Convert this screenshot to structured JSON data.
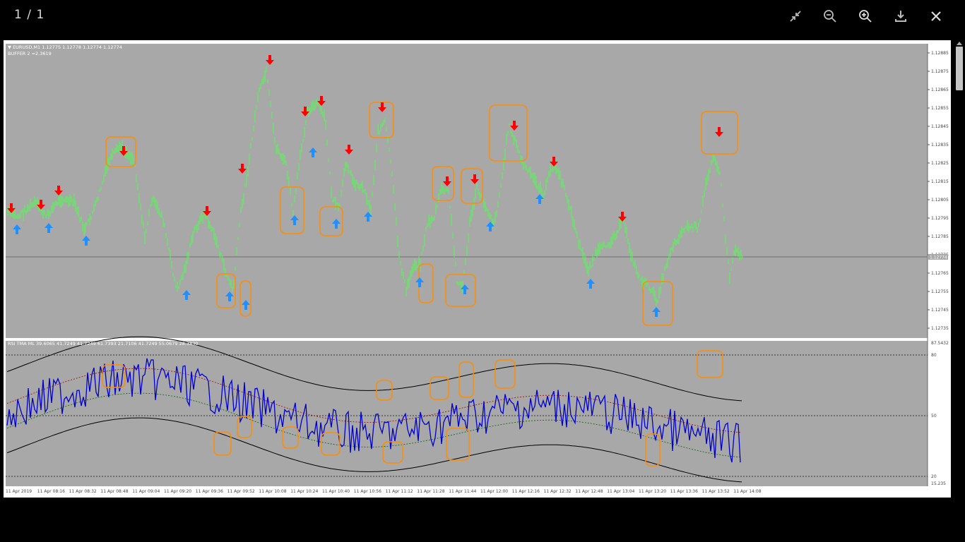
{
  "viewer": {
    "counter": "1 / 1",
    "toolbar": [
      {
        "name": "exit-fullscreen-icon"
      },
      {
        "name": "zoom-out-icon"
      },
      {
        "name": "zoom-in-icon"
      },
      {
        "name": "download-icon"
      },
      {
        "name": "close-icon"
      }
    ]
  },
  "chart": {
    "header_symbol": "▼ EURUSD,M1  1.12775 1.12778 1.12774 1.12774",
    "header_buffer": "BUFFER 2 =2.3619",
    "current_price": "1.12774",
    "price_ticks": [
      "1.12885",
      "1.12875",
      "1.12865",
      "1.12855",
      "1.12845",
      "1.12835",
      "1.12825",
      "1.12815",
      "1.12805",
      "1.12795",
      "1.12785",
      "1.12775",
      "1.12765",
      "1.12755",
      "1.12745",
      "1.12735"
    ],
    "rsi_header": "RSI TMA ML 39.6065 41.7249 41.7249 61.7393 21.7106 41.7249 55.0679 28.3830",
    "rsi_ticks": [
      "87.5432",
      "80",
      "50",
      "20",
      "15.235"
    ],
    "time_ticks": [
      "11 Apr 2019",
      "11 Apr 08:16",
      "11 Apr 08:32",
      "11 Apr 08:48",
      "11 Apr 09:04",
      "11 Apr 09:20",
      "11 Apr 09:36",
      "11 Apr 09:52",
      "11 Apr 10:08",
      "11 Apr 10:24",
      "11 Apr 10:40",
      "11 Apr 10:56",
      "11 Apr 11:12",
      "11 Apr 11:28",
      "11 Apr 11:44",
      "11 Apr 12:00",
      "11 Apr 12:16",
      "11 Apr 12:32",
      "11 Apr 12:48",
      "11 Apr 13:04",
      "11 Apr 13:20",
      "11 Apr 13:36",
      "11 Apr 13:52",
      "11 Apr 14:08"
    ],
    "colors": {
      "background": "#a8a8a8",
      "candles": "#4dff4d",
      "sell_arrow": "#ff0000",
      "buy_arrow": "#1e90ff",
      "highlight_box": "#ff8c00",
      "rsi_line": "#0000cc",
      "band": "#000000",
      "mid_band_red": "#aa0000",
      "mid_band_green": "#006600"
    }
  }
}
